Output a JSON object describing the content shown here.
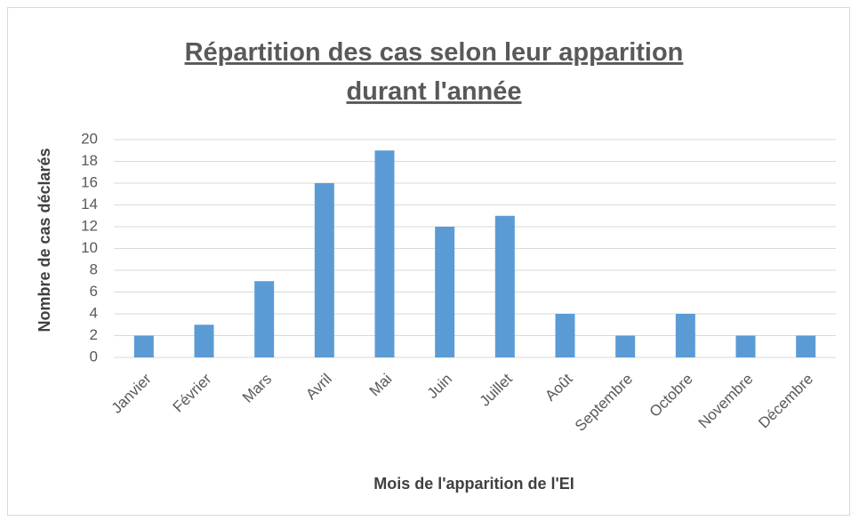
{
  "chart_data": {
    "type": "bar",
    "title": [
      "Répartition des cas selon leur apparition",
      "durant l'année"
    ],
    "x_label": "Mois de l'apparition de l'EI",
    "y_label": "Nombre de cas déclarés",
    "categories": [
      "Janvier",
      "Février",
      "Mars",
      "Avril",
      "Mai",
      "Juin",
      "Juillet",
      "Août",
      "Septembre",
      "Octobre",
      "Novembre",
      "Décembre"
    ],
    "values": [
      2,
      3,
      7,
      16,
      19,
      12,
      13,
      4,
      2,
      4,
      2,
      2
    ],
    "color": "#5b9bd5",
    "ylim": [
      0,
      20
    ],
    "yticks": [
      0,
      2,
      4,
      6,
      8,
      10,
      12,
      14,
      16,
      18,
      20
    ],
    "grid": true
  }
}
